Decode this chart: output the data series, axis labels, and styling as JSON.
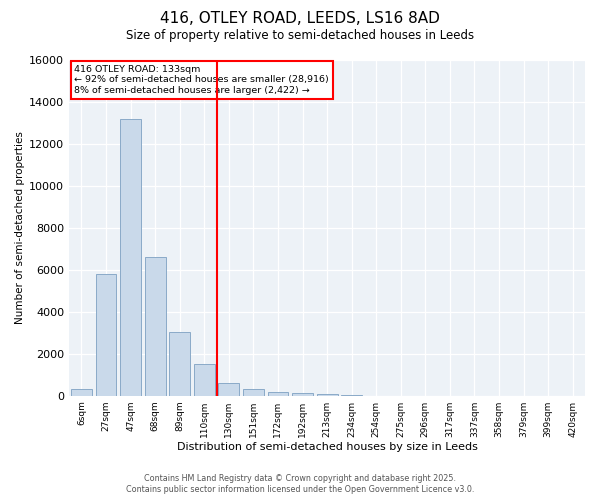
{
  "title": "416, OTLEY ROAD, LEEDS, LS16 8AD",
  "subtitle": "Size of property relative to semi-detached houses in Leeds",
  "xlabel": "Distribution of semi-detached houses by size in Leeds",
  "ylabel": "Number of semi-detached properties",
  "categories": [
    "6sqm",
    "27sqm",
    "47sqm",
    "68sqm",
    "89sqm",
    "110sqm",
    "130sqm",
    "151sqm",
    "172sqm",
    "192sqm",
    "213sqm",
    "234sqm",
    "254sqm",
    "275sqm",
    "296sqm",
    "317sqm",
    "337sqm",
    "358sqm",
    "379sqm",
    "399sqm",
    "420sqm"
  ],
  "values": [
    300,
    5800,
    13200,
    6600,
    3050,
    1500,
    600,
    300,
    200,
    150,
    100,
    50,
    0,
    0,
    0,
    0,
    0,
    0,
    0,
    0,
    0
  ],
  "bar_color": "#c9d9ea",
  "bar_edge_color": "#7aaan0",
  "vline_label": "416 OTLEY ROAD: 133sqm",
  "annotation_smaller": "← 92% of semi-detached houses are smaller (28,916)",
  "annotation_larger": "8% of semi-detached houses are larger (2,422) →",
  "vline_pos": 5.5,
  "ylim": [
    0,
    16000
  ],
  "yticks": [
    0,
    2000,
    4000,
    6000,
    8000,
    10000,
    12000,
    14000,
    16000
  ],
  "background_color": "#edf2f7",
  "grid_color": "#ffffff",
  "footer1": "Contains HM Land Registry data © Crown copyright and database right 2025.",
  "footer2": "Contains public sector information licensed under the Open Government Licence v3.0."
}
